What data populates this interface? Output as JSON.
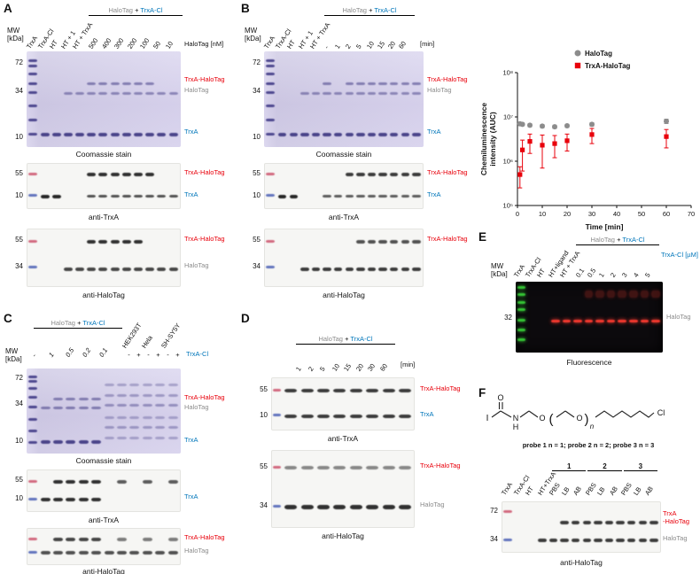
{
  "colors": {
    "red": "#e8000b",
    "blue": "#0076ba",
    "gray": "#8c8c8c",
    "black": "#000000"
  },
  "shared": {
    "mw": "MW\n[kDa]",
    "bracket": {
      "halotag": "HaloTag",
      "plus": "+",
      "trxacl": "TrxA-Cl"
    },
    "labels": {
      "trxa_halotag": "TrxA-HaloTag",
      "halotag": "HaloTag",
      "trxa": "TrxA",
      "trxa_halotag_2line": "TrxA\n-HaloTag"
    },
    "captions": {
      "coomassie": "Coomassie stain",
      "anti_trxa": "anti-TrxA",
      "anti_halotag": "anti-HaloTag",
      "fluorescence": "Fluorescence"
    }
  },
  "panelA": {
    "label": "A",
    "lanes": [
      "TrxA",
      "TrxA-Cl",
      "HT",
      "HT + 1",
      "HT + TrxA"
    ],
    "concs": [
      "500",
      "400",
      "300",
      "200",
      "100",
      "50",
      "10"
    ],
    "conc_unit": "HaloTag [nM]",
    "gel_mw": [
      "72",
      "34",
      "10"
    ],
    "blot1_mw": [
      "55",
      "10"
    ],
    "blot2_mw": [
      "55",
      "34"
    ]
  },
  "panelB": {
    "label": "B",
    "lanes": [
      "TrxA",
      "TrxA-Cl",
      "HT",
      "HT + 1",
      "HT + TrxA"
    ],
    "times": [
      "-",
      "1",
      "2",
      "5",
      "10",
      "15",
      "20",
      "60"
    ],
    "time_unit": "[min]",
    "gel_mw": [
      "72",
      "34",
      "10"
    ],
    "blot1_mw": [
      "55",
      "10"
    ],
    "blot2_mw": [
      "55",
      "34"
    ]
  },
  "panelC": {
    "label": "C",
    "groups": [
      "HEK293T",
      "Hela",
      "SH-SY5Y"
    ],
    "doses": [
      "-",
      "1",
      "0.5",
      "0.2",
      "0.1"
    ],
    "pm": [
      "-",
      "+",
      "-",
      "+",
      "-",
      "+"
    ],
    "trxacl": "TrxA-Cl",
    "gel_mw": [
      "72",
      "34",
      "10"
    ],
    "blot1_mw": [
      "55",
      "10"
    ]
  },
  "panelD": {
    "label": "D",
    "times": [
      "1",
      "2",
      "5",
      "10",
      "15",
      "20",
      "30",
      "60"
    ],
    "time_unit": "[min]",
    "blot1_mw": [
      "55",
      "10"
    ],
    "blot2_mw": [
      "55",
      "34"
    ]
  },
  "panelE": {
    "label": "E",
    "lanes": [
      "TrxA",
      "TrxA-Cl",
      "HT",
      "HT+ligand",
      "HT + TrxA"
    ],
    "concs": [
      "0.1",
      "0.5",
      "1",
      "2",
      "3",
      "4",
      "5"
    ],
    "conc_unit": "TrxA-Cl [µM]",
    "mw": "32"
  },
  "panelF": {
    "label": "F",
    "probes_caption": "probe 1 n = 1; probe 2 n = 2; probe 3 n = 3",
    "structure_atoms": {
      "i": "I",
      "o1": "O",
      "n": "N",
      "h": "H",
      "o2": "O",
      "lp": "(",
      "o3": "O",
      "rp": ")",
      "sub": "n",
      "cl": "Cl"
    },
    "lanes": [
      "TrxA",
      "TrxA-Cl",
      "HT",
      "HT+TrxA",
      "PBS",
      "LB",
      "AB",
      "PBS",
      "LB",
      "AB",
      "PBS",
      "LB",
      "AB"
    ],
    "probe_groups": [
      "1",
      "2",
      "3"
    ],
    "blot_mw": [
      "72",
      "34"
    ]
  },
  "chart_data": {
    "type": "scatter",
    "xlabel": "Time [min]",
    "ylabel_line1": "Chemiluminescence",
    "ylabel_line2": "intensity (AUC)",
    "xlim": [
      0,
      70
    ],
    "ylim": [
      100000,
      100000000
    ],
    "xticks": [
      0,
      10,
      20,
      30,
      40,
      50,
      60,
      70
    ],
    "yticks": [
      {
        "label": "10⁸",
        "value": 100000000
      },
      {
        "label": "10⁷",
        "value": 10000000
      },
      {
        "label": "10⁶",
        "value": 1000000
      },
      {
        "label": "10⁵",
        "value": 100000
      }
    ],
    "legend_position": "top-right",
    "series": [
      {
        "name": "HaloTag",
        "marker": "circle",
        "color": "#8c8c8c",
        "x": [
          1,
          2,
          5,
          10,
          15,
          20,
          30,
          60
        ],
        "y": [
          7000000,
          6800000,
          6500000,
          6200000,
          6000000,
          6300000,
          6800000,
          8000000
        ],
        "err": [
          600000,
          500000,
          500000,
          500000,
          500000,
          500000,
          600000,
          900000
        ]
      },
      {
        "name": "TrxA-HaloTag",
        "marker": "square",
        "color": "#e8000b",
        "x": [
          1,
          2,
          5,
          10,
          15,
          20,
          30,
          60
        ],
        "y": [
          500000,
          1800000,
          2800000,
          2300000,
          2500000,
          2900000,
          4000000,
          3600000
        ],
        "err": [
          250000,
          1200000,
          1300000,
          1600000,
          1300000,
          1200000,
          1500000,
          1600000
        ]
      }
    ]
  },
  "gels": {
    "a_coomassie": {
      "type": "coomassie",
      "n": 12,
      "ladder": [
        {
          "y": 8
        },
        {
          "y": 14
        },
        {
          "y": 22
        },
        {
          "y": 32
        },
        {
          "y": 42
        },
        {
          "y": 56
        },
        {
          "y": 70
        },
        {
          "y": 85
        }
      ],
      "rows": [
        {
          "y": 32,
          "from": 5,
          "to": 10,
          "a": 0.5,
          "h": 3
        },
        {
          "y": 43,
          "from": 3,
          "to": 12,
          "a": 0.45,
          "h": 3
        },
        {
          "y": 85,
          "from": 1,
          "to": 12,
          "a": 0.85,
          "h": 4
        }
      ]
    },
    "a_antitrxa": {
      "type": "blot",
      "n": 12,
      "ladder": [
        {
          "y": 22,
          "c": "#cf5b74"
        },
        {
          "y": 68,
          "c": "#5468b8"
        }
      ],
      "rows": [
        {
          "y": 22,
          "from": 5,
          "to": 10,
          "a": 0.9,
          "h": 4
        },
        {
          "y": 70,
          "from": 1,
          "to": 2,
          "a": 0.95,
          "h": 4
        },
        {
          "y": 70,
          "from": 5,
          "to": 12,
          "a": 0.75,
          "h": 3
        }
      ]
    },
    "a_antihalotag": {
      "type": "blot",
      "n": 12,
      "ladder": [
        {
          "y": 20,
          "c": "#cf5b74"
        },
        {
          "y": 64,
          "c": "#5468b8"
        }
      ],
      "rows": [
        {
          "y": 20,
          "from": 5,
          "to": 9,
          "a": 0.9,
          "h": 4
        },
        {
          "y": 66,
          "from": 3,
          "to": 12,
          "a": 0.8,
          "h": 4
        }
      ]
    },
    "b_coomassie": {
      "type": "coomassie",
      "n": 13,
      "ladder": [
        {
          "y": 8
        },
        {
          "y": 14
        },
        {
          "y": 22
        },
        {
          "y": 32
        },
        {
          "y": 42
        },
        {
          "y": 56
        },
        {
          "y": 70
        },
        {
          "y": 85
        }
      ],
      "rows": [
        {
          "y": 32,
          "from": 5,
          "to": 13,
          "a": 0.5,
          "h": 3,
          "skip": [
            6
          ]
        },
        {
          "y": 43,
          "from": 3,
          "to": 13,
          "a": 0.45,
          "h": 3
        },
        {
          "y": 85,
          "from": 1,
          "to": 13,
          "a": 0.85,
          "h": 4
        }
      ]
    },
    "b_antitrxa": {
      "type": "blot",
      "n": 13,
      "ladder": [
        {
          "y": 22,
          "c": "#cf5b74"
        },
        {
          "y": 68,
          "c": "#5468b8"
        }
      ],
      "rows": [
        {
          "y": 22,
          "from": 7,
          "to": 13,
          "a": 0.85,
          "h": 4
        },
        {
          "y": 70,
          "from": 1,
          "to": 2,
          "a": 0.95,
          "h": 4
        },
        {
          "y": 70,
          "from": 5,
          "to": 13,
          "a": 0.7,
          "h": 3
        }
      ]
    },
    "b_antihalotag": {
      "type": "blot",
      "n": 13,
      "ladder": [
        {
          "y": 20,
          "c": "#cf5b74"
        },
        {
          "y": 64,
          "c": "#5468b8"
        }
      ],
      "rows": [
        {
          "y": 20,
          "from": 8,
          "to": 13,
          "a": 0.75,
          "h": 4
        },
        {
          "y": 66,
          "from": 3,
          "to": 13,
          "a": 0.85,
          "h": 4
        }
      ]
    },
    "c_coomassie": {
      "type": "coomassie",
      "n": 11,
      "ladder": [
        {
          "y": 8
        },
        {
          "y": 14
        },
        {
          "y": 22
        },
        {
          "y": 32
        },
        {
          "y": 44
        },
        {
          "y": 58
        },
        {
          "y": 72
        },
        {
          "y": 85
        }
      ],
      "rows": [
        {
          "y": 34,
          "from": 2,
          "to": 5,
          "a": 0.5,
          "h": 3
        },
        {
          "y": 45,
          "from": 1,
          "to": 5,
          "a": 0.5,
          "h": 3
        },
        {
          "y": 84,
          "from": 1,
          "to": 5,
          "a": 0.85,
          "h": 4
        },
        {
          "y": 18,
          "from": 6,
          "to": 11,
          "a": 0.3,
          "h": 3
        },
        {
          "y": 30,
          "from": 6,
          "to": 11,
          "a": 0.35,
          "h": 3
        },
        {
          "y": 42,
          "from": 6,
          "to": 11,
          "a": 0.4,
          "h": 3
        },
        {
          "y": 56,
          "from": 6,
          "to": 11,
          "a": 0.3,
          "h": 3
        },
        {
          "y": 68,
          "from": 6,
          "to": 11,
          "a": 0.35,
          "h": 3
        },
        {
          "y": 80,
          "from": 6,
          "to": 11,
          "a": 0.3,
          "h": 3
        }
      ]
    },
    "c_antitrxa": {
      "type": "blot",
      "n": 11,
      "ladder": [
        {
          "y": 24,
          "c": "#cf5b74"
        },
        {
          "y": 66,
          "c": "#5468b8"
        }
      ],
      "rows": [
        {
          "y": 24,
          "from": 2,
          "to": 5,
          "a": 0.9,
          "h": 4
        },
        {
          "y": 24,
          "from": 7,
          "to": 11,
          "a": 0.7,
          "h": 4,
          "skip": [
            8,
            10
          ]
        },
        {
          "y": 66,
          "from": 1,
          "to": 5,
          "a": 0.9,
          "h": 4
        }
      ]
    },
    "c_antihalotag": {
      "type": "blot",
      "n": 11,
      "ladder": [
        {
          "y": 26,
          "c": "#cf5b74"
        },
        {
          "y": 62,
          "c": "#5468b8"
        }
      ],
      "rows": [
        {
          "y": 26,
          "from": 2,
          "to": 5,
          "a": 0.8,
          "h": 4
        },
        {
          "y": 26,
          "from": 7,
          "to": 11,
          "a": 0.55,
          "h": 4,
          "skip": [
            8,
            10
          ]
        },
        {
          "y": 62,
          "from": 1,
          "to": 11,
          "a": 0.75,
          "h": 4
        }
      ]
    },
    "d_antitrxa": {
      "type": "blot",
      "n": 8,
      "ladder": [
        {
          "y": 22,
          "c": "#cf5b74"
        },
        {
          "y": 68,
          "c": "#5468b8"
        }
      ],
      "rows": [
        {
          "y": 22,
          "from": 1,
          "to": 8,
          "a": 0.85,
          "h": 4
        },
        {
          "y": 70,
          "from": 1,
          "to": 8,
          "a": 0.85,
          "h": 4
        }
      ]
    },
    "d_antihalotag": {
      "type": "blot",
      "n": 8,
      "ladder": [
        {
          "y": 20,
          "c": "#cf5b74"
        },
        {
          "y": 70,
          "c": "#5468b8"
        }
      ],
      "rows": [
        {
          "y": 20,
          "from": 1,
          "to": 8,
          "a": 0.5,
          "h": 4
        },
        {
          "y": 70,
          "from": 1,
          "to": 8,
          "a": 0.9,
          "h": 5
        }
      ]
    },
    "e_fluor": {
      "type": "fluor",
      "n": 12,
      "ladder_color": "#39d839",
      "ladder": [
        {
          "y": 6
        },
        {
          "y": 16
        },
        {
          "y": 27
        },
        {
          "y": 38
        },
        {
          "y": 52
        },
        {
          "y": 66
        },
        {
          "y": 80
        }
      ],
      "rows": [
        {
          "y": 12,
          "from": 6,
          "to": 12,
          "a": 0.22,
          "h": 8
        },
        {
          "y": 54,
          "from": 3,
          "to": 12,
          "a": 0.95,
          "h": 3
        }
      ]
    },
    "f_antihalotag": {
      "type": "blot",
      "n": 13,
      "ladder": [
        {
          "y": 18,
          "c": "#cf5b74"
        },
        {
          "y": 72,
          "c": "#5468b8"
        }
      ],
      "rows": [
        {
          "y": 38,
          "from": 5,
          "to": 13,
          "a": 0.85,
          "h": 4
        },
        {
          "y": 72,
          "from": 3,
          "to": 13,
          "a": 0.85,
          "h": 4
        }
      ]
    }
  }
}
